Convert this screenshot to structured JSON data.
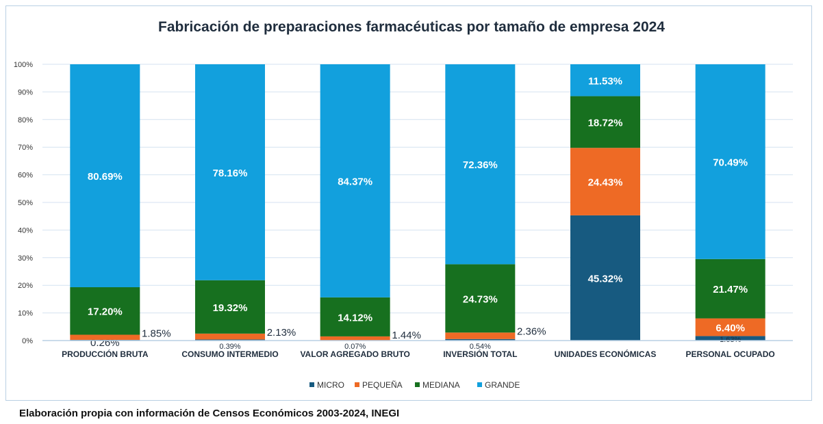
{
  "chart_data": {
    "type": "bar",
    "stacked": "percent",
    "title": "Fabricación de preparaciones farmacéuticas por tamaño de empresa 2024",
    "categories": [
      "PRODUCCIÓN BRUTA",
      "CONSUMO INTERMEDIO",
      "VALOR AGREGADO BRUTO",
      "INVERSIÓN TOTAL",
      "UNIDADES ECONÓMICAS",
      "PERSONAL OCUPADO"
    ],
    "series": [
      {
        "name": "MICRO",
        "color": "#175a80",
        "values": [
          0.26,
          0.39,
          0.07,
          0.54,
          45.32,
          1.63
        ]
      },
      {
        "name": "PEQUEÑA",
        "color": "#ee6a25",
        "values": [
          1.85,
          2.13,
          1.44,
          2.36,
          24.43,
          6.4
        ]
      },
      {
        "name": "MEDIANA",
        "color": "#17701f",
        "values": [
          17.2,
          19.32,
          14.12,
          24.73,
          18.72,
          21.47
        ]
      },
      {
        "name": "GRANDE",
        "color": "#12a0dd",
        "values": [
          80.69,
          78.16,
          84.37,
          72.36,
          11.53,
          70.49
        ]
      }
    ],
    "ylim": [
      0,
      100
    ],
    "yticks": [
      "0%",
      "10%",
      "20%",
      "30%",
      "40%",
      "50%",
      "60%",
      "70%",
      "80%",
      "90%",
      "100%"
    ],
    "grid": true,
    "legend": "bottom"
  },
  "footer": "Elaboración propia con información de Censos Económicos 2003-2024, INEGI"
}
